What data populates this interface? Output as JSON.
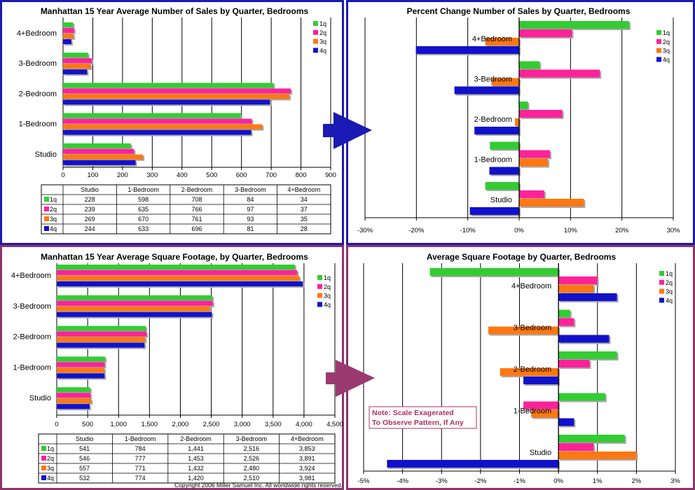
{
  "colors": {
    "q1": "#33cc33",
    "q2": "#ff2299",
    "q3": "#ff7711",
    "q4": "#1111cc",
    "blue_frame": "#1a1ab4",
    "maroon_frame": "#8e3469",
    "arrow_blue": "#1a1ab4",
    "arrow_maroon": "#9b3a70",
    "note": "#b03060"
  },
  "copyright": "Copyright 2006 Miller Samuel Inc. All worldwide rights reserved.",
  "note": {
    "line1": "Note: Scale Exagerated",
    "line2": "To Observe Pattern, If Any"
  },
  "chart_data": [
    {
      "type": "bar",
      "title": "Manhattan 15 Year Average Number of Sales by Quarter, Bedrooms",
      "categories": [
        "Studio",
        "1-Bedroom",
        "2-Bedroom",
        "3-Bedroom",
        "4+Bedroom"
      ],
      "series": [
        {
          "name": "1q",
          "values": [
            228,
            598,
            708,
            84,
            34
          ]
        },
        {
          "name": "2q",
          "values": [
            239,
            635,
            766,
            97,
            37
          ]
        },
        {
          "name": "3q",
          "values": [
            269,
            670,
            761,
            93,
            35
          ]
        },
        {
          "name": "4q",
          "values": [
            244,
            633,
            696,
            81,
            28
          ]
        }
      ],
      "xlim": [
        0,
        900
      ],
      "xticks": [
        "0",
        "100",
        "200",
        "300",
        "400",
        "500",
        "600",
        "700",
        "800",
        "900"
      ],
      "table": {
        "header": [
          "Studio",
          "1-Bedroom",
          "2-Bedroom",
          "3-Bedroom",
          "4+Bedroom"
        ],
        "rows": [
          {
            "label": "1q",
            "cells": [
              "228",
              "598",
              "708",
              "84",
              "34"
            ]
          },
          {
            "label": "2q",
            "cells": [
              "239",
              "635",
              "766",
              "97",
              "37"
            ]
          },
          {
            "label": "3q",
            "cells": [
              "269",
              "670",
              "761",
              "93",
              "35"
            ]
          },
          {
            "label": "4q",
            "cells": [
              "244",
              "633",
              "696",
              "81",
              "28"
            ]
          }
        ]
      }
    },
    {
      "type": "bar",
      "title": "Percent Change Number of Sales by Quarter, Bedrooms",
      "categories": [
        "Studio",
        "1-Bedroom",
        "2-Bedroom",
        "3-Bedroom",
        "4+Bedroom"
      ],
      "series": [
        {
          "name": "1q",
          "values": [
            -6.6,
            -5.7,
            1.7,
            4.0,
            21.4
          ]
        },
        {
          "name": "2q",
          "values": [
            4.9,
            6.0,
            8.4,
            15.7,
            10.3
          ]
        },
        {
          "name": "3q",
          "values": [
            12.6,
            5.6,
            -0.8,
            -5.4,
            -6.6
          ]
        },
        {
          "name": "4q",
          "values": [
            -9.6,
            -5.8,
            -8.7,
            -12.6,
            -20.1
          ]
        }
      ],
      "xlim": [
        -30,
        30
      ],
      "xticks": [
        "-30%",
        "-20%",
        "-10%",
        "0%",
        "10%",
        "20%",
        "30%"
      ]
    },
    {
      "type": "bar",
      "title": "Manhattan 15 Year Average Square Footage, by Quarter, Bedrooms",
      "categories": [
        "Studio",
        "1-Bedroom",
        "2-Bedroom",
        "3-Bedroom",
        "4+Bedroom"
      ],
      "series": [
        {
          "name": "1q",
          "values": [
            541,
            784,
            1441,
            2516,
            3853
          ]
        },
        {
          "name": "2q",
          "values": [
            546,
            777,
            1453,
            2526,
            3891
          ]
        },
        {
          "name": "3q",
          "values": [
            557,
            771,
            1432,
            2480,
            3924
          ]
        },
        {
          "name": "4q",
          "values": [
            532,
            774,
            1420,
            2510,
            3981
          ]
        }
      ],
      "xlim": [
        0,
        4500
      ],
      "xticks": [
        "0",
        "500",
        "1,000",
        "1,500",
        "2,000",
        "2,500",
        "3,000",
        "3,500",
        "4,000",
        "4,500"
      ],
      "table": {
        "header": [
          "Studio",
          "1-Bedroom",
          "2-Bedroom",
          "3-Bedroom",
          "4+Bedroom"
        ],
        "rows": [
          {
            "label": "1q",
            "cells": [
              "541",
              "784",
              "1,441",
              "2,516",
              "3,853"
            ]
          },
          {
            "label": "2q",
            "cells": [
              "546",
              "777",
              "1,453",
              "2,526",
              "3,891"
            ]
          },
          {
            "label": "3q",
            "cells": [
              "557",
              "771",
              "1,432",
              "2,480",
              "3,924"
            ]
          },
          {
            "label": "4q",
            "cells": [
              "532",
              "774",
              "1,420",
              "2,510",
              "3,981"
            ]
          }
        ]
      }
    },
    {
      "type": "bar",
      "title": "Average Square Footage by Quarter, Bedrooms",
      "categories": [
        "Studio",
        "1-Bedroom",
        "2-Bedroom",
        "3-Bedroom",
        "4+Bedroom"
      ],
      "series": [
        {
          "name": "1q",
          "values": [
            1.7,
            1.2,
            1.5,
            0.3,
            -3.3
          ]
        },
        {
          "name": "2q",
          "values": [
            0.9,
            -0.9,
            0.8,
            0.4,
            1.0
          ]
        },
        {
          "name": "3q",
          "values": [
            2.0,
            -0.7,
            -1.5,
            -1.8,
            0.9
          ]
        },
        {
          "name": "4q",
          "values": [
            -4.4,
            0.4,
            -0.9,
            1.3,
            1.5
          ]
        }
      ],
      "xlim": [
        -5,
        3
      ],
      "xticks": [
        "-5%",
        "-4%",
        "-3%",
        "-2%",
        "-1%",
        "0%",
        "1%",
        "2%",
        "3%"
      ]
    }
  ]
}
